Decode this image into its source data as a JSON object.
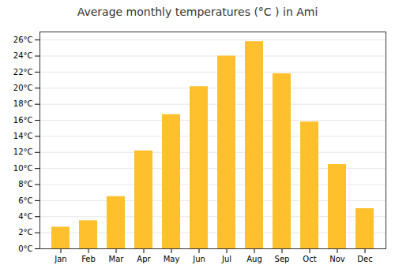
{
  "chart_data": {
    "type": "bar",
    "title": "Average monthly temperatures (°C ) in Ami",
    "categories": [
      "Jan",
      "Feb",
      "Mar",
      "Apr",
      "May",
      "Jun",
      "Jul",
      "Aug",
      "Sep",
      "Oct",
      "Nov",
      "Dec"
    ],
    "values": [
      2.7,
      3.5,
      6.5,
      12.2,
      16.7,
      20.2,
      24.0,
      25.8,
      21.8,
      15.8,
      10.5,
      5.0
    ],
    "color": "#FFC02D",
    "ylim": [
      0,
      27
    ],
    "yticks": [
      {
        "value": 0,
        "label": "0°C"
      },
      {
        "value": 2,
        "label": "2°C"
      },
      {
        "value": 4,
        "label": "4°C"
      },
      {
        "value": 6,
        "label": "6°C"
      },
      {
        "value": 8,
        "label": "8°C"
      },
      {
        "value": 10,
        "label": "10°C"
      },
      {
        "value": 12,
        "label": "12°C"
      },
      {
        "value": 14,
        "label": "14°C"
      },
      {
        "value": 16,
        "label": "16°C"
      },
      {
        "value": 18,
        "label": "18°C"
      },
      {
        "value": 20,
        "label": "20°C"
      },
      {
        "value": 22,
        "label": "22°C"
      },
      {
        "value": 24,
        "label": "24°C"
      },
      {
        "value": 26,
        "label": "26°C"
      }
    ],
    "grid": true
  }
}
